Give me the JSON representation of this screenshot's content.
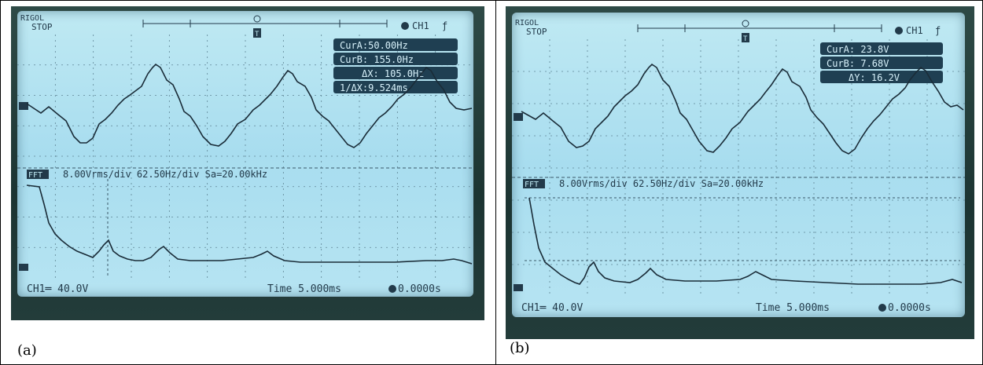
{
  "panels": [
    {
      "caption": "(a)",
      "brand": "RIGOL",
      "status": "STOP",
      "channel": "CH1",
      "cursors": [
        "CurA:50.00Hz",
        "CurB: 155.0Hz",
        "ΔX: 105.0Hz",
        "1/ΔX:9.524ms"
      ],
      "fft_label": "FFT",
      "fft_info": "8.00Vrms/div 62.50Hz/div Sa=20.00kHz",
      "ch_scale": "CH1═ 40.0V",
      "timebase": "Time 5.000ms",
      "trigger_pos": "0.0000s"
    },
    {
      "caption": "(b)",
      "brand": "RIGOL",
      "status": "STOP",
      "channel": "CH1",
      "cursors": [
        "CurA: 23.8V",
        "CurB: 7.68V",
        "ΔY: 16.2V"
      ],
      "fft_label": "FFT",
      "fft_info": "8.00Vrms/div 62.50Hz/div Sa=20.00kHz",
      "ch_scale": "CH1═ 40.0V",
      "timebase": "Time 5.000ms",
      "trigger_pos": "0.0000s"
    }
  ],
  "icons": {
    "trigger": "trigger-edge-icon",
    "marker": "trigger-marker-icon",
    "channel_marker": "channel-marker-icon"
  }
}
